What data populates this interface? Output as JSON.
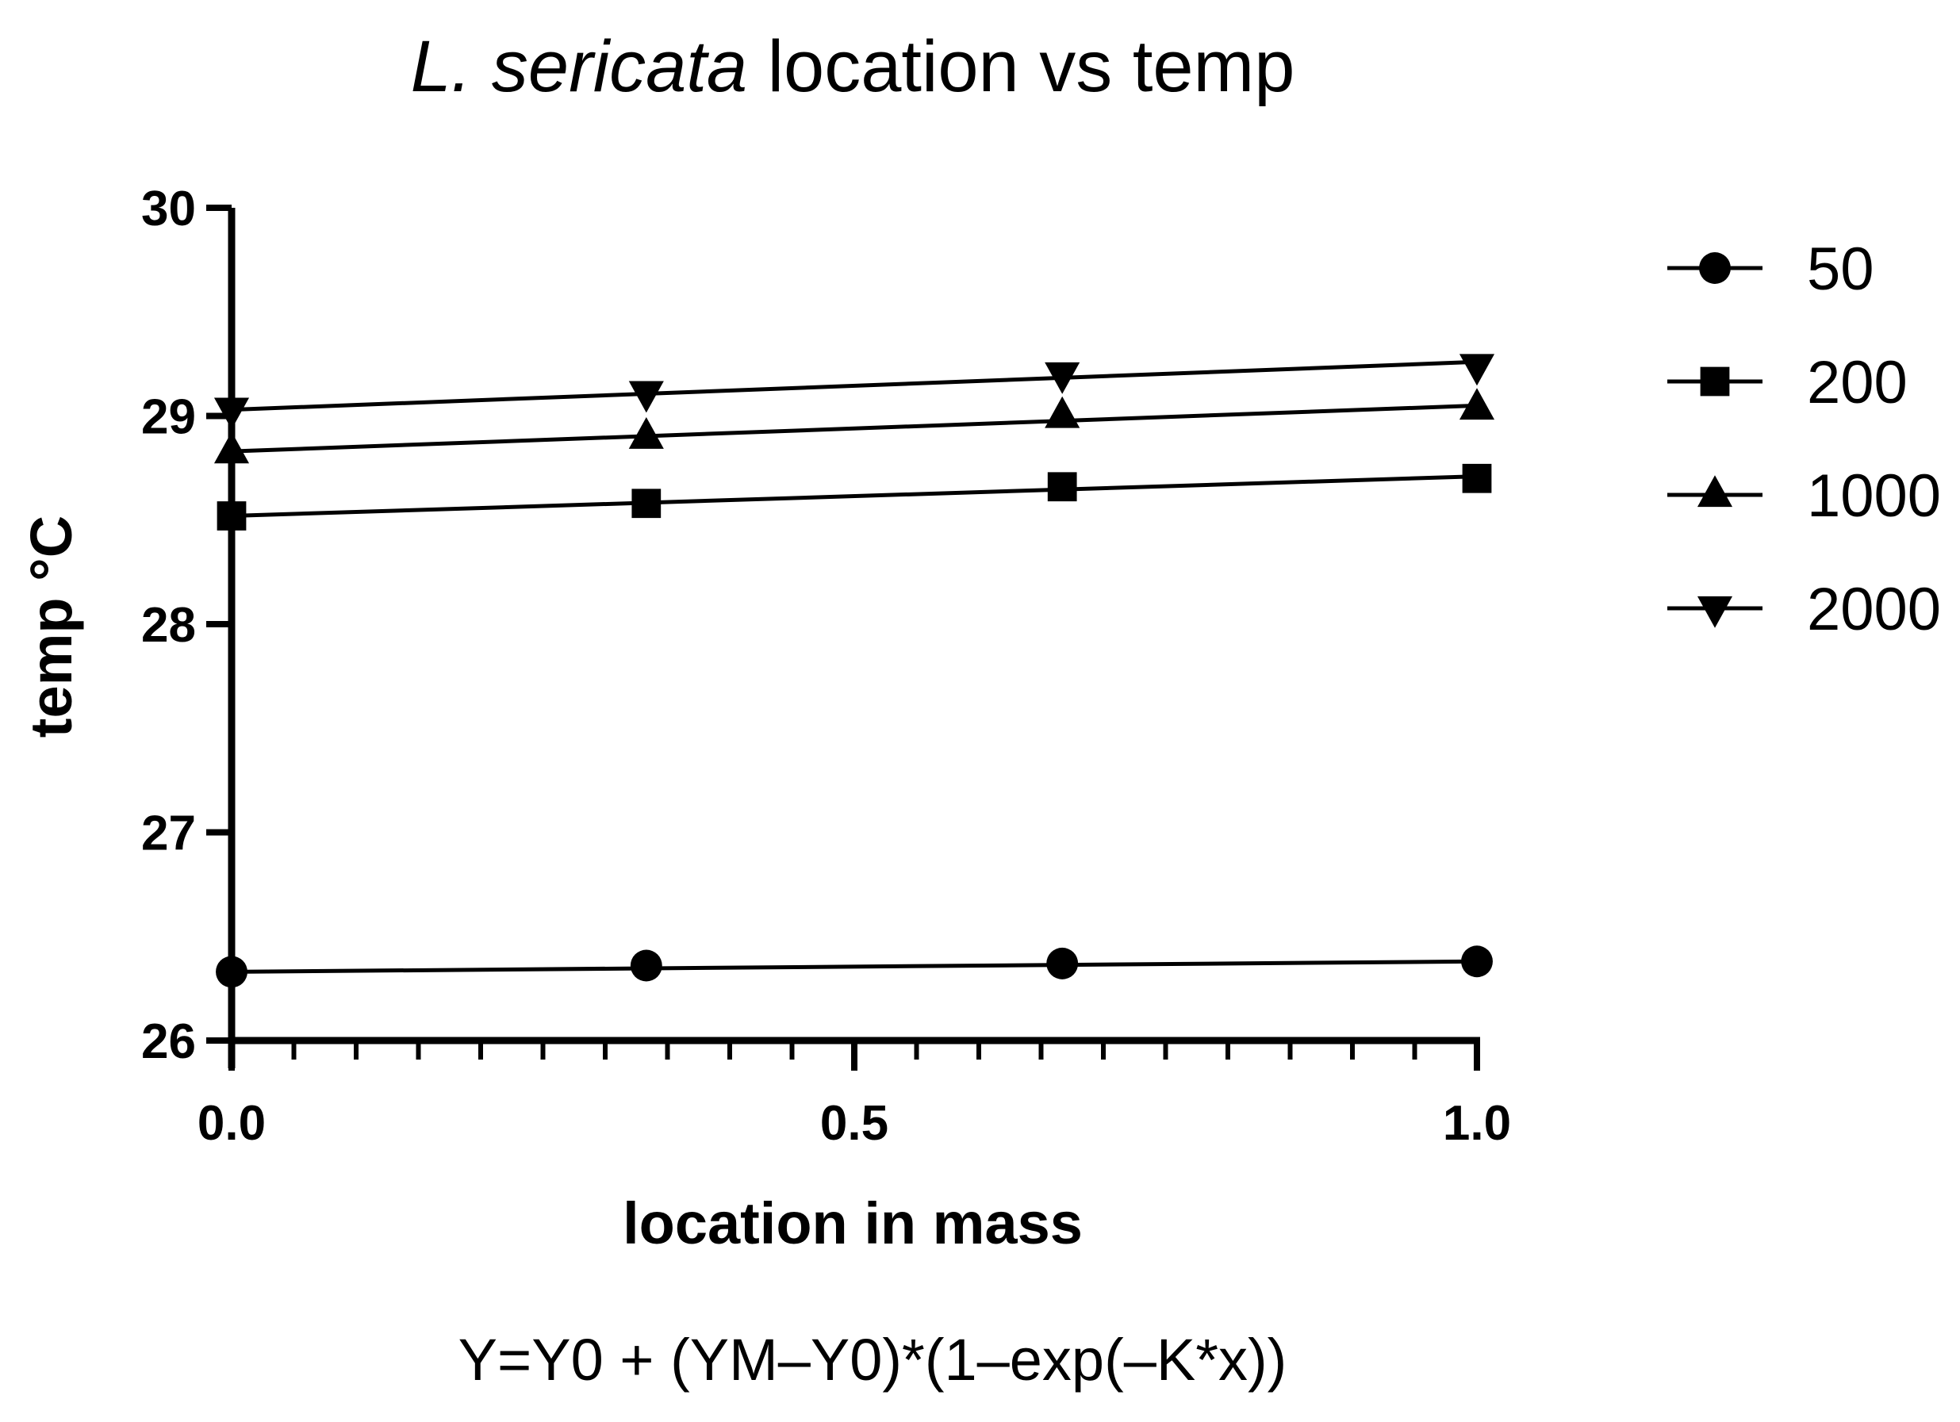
{
  "chart_data": {
    "type": "line",
    "title_italic": "L. sericata",
    "title_rest": " location vs temp",
    "xlabel": "location in mass",
    "ylabel": "temp °C",
    "equation": "Y=Y0 + (YM–Y0)*(1–exp(–K*x))",
    "xlim": [
      0,
      1
    ],
    "ylim": [
      26,
      30
    ],
    "x_ticks": [
      0,
      0.5,
      1.0
    ],
    "x_tick_labels": [
      "0.0",
      "0.5",
      "1.0"
    ],
    "y_ticks": [
      26,
      27,
      28,
      29,
      30
    ],
    "y_tick_labels": [
      "26",
      "27",
      "28",
      "29",
      "30"
    ],
    "x_minor_tick_step": 0.05,
    "legend_position": "right",
    "grid": false,
    "line_color": "#000000",
    "series": [
      {
        "name": "50",
        "marker": "circle",
        "points": [
          {
            "x": 0,
            "y": 26.33
          },
          {
            "x": 0.333,
            "y": 26.36
          },
          {
            "x": 0.667,
            "y": 26.37
          },
          {
            "x": 1.0,
            "y": 26.38
          }
        ],
        "fit": [
          {
            "x": 0,
            "y": 26.33
          },
          {
            "x": 1.0,
            "y": 26.38
          }
        ]
      },
      {
        "name": "200",
        "marker": "square",
        "points": [
          {
            "x": 0,
            "y": 28.52
          },
          {
            "x": 0.333,
            "y": 28.58
          },
          {
            "x": 0.667,
            "y": 28.66
          },
          {
            "x": 1.0,
            "y": 28.7
          }
        ],
        "fit": [
          {
            "x": 0,
            "y": 28.52
          },
          {
            "x": 1.0,
            "y": 28.71
          }
        ]
      },
      {
        "name": "1000",
        "marker": "triangle-up",
        "points": [
          {
            "x": 0,
            "y": 28.83
          },
          {
            "x": 0.333,
            "y": 28.9
          },
          {
            "x": 0.667,
            "y": 29.0
          },
          {
            "x": 1.0,
            "y": 29.04
          }
        ],
        "fit": [
          {
            "x": 0,
            "y": 28.83
          },
          {
            "x": 1.0,
            "y": 29.05
          }
        ]
      },
      {
        "name": "2000",
        "marker": "triangle-down",
        "points": [
          {
            "x": 0,
            "y": 29.03
          },
          {
            "x": 0.333,
            "y": 29.11
          },
          {
            "x": 0.667,
            "y": 29.2
          },
          {
            "x": 1.0,
            "y": 29.24
          }
        ],
        "fit": [
          {
            "x": 0,
            "y": 29.03
          },
          {
            "x": 1.0,
            "y": 29.26
          }
        ]
      }
    ]
  }
}
